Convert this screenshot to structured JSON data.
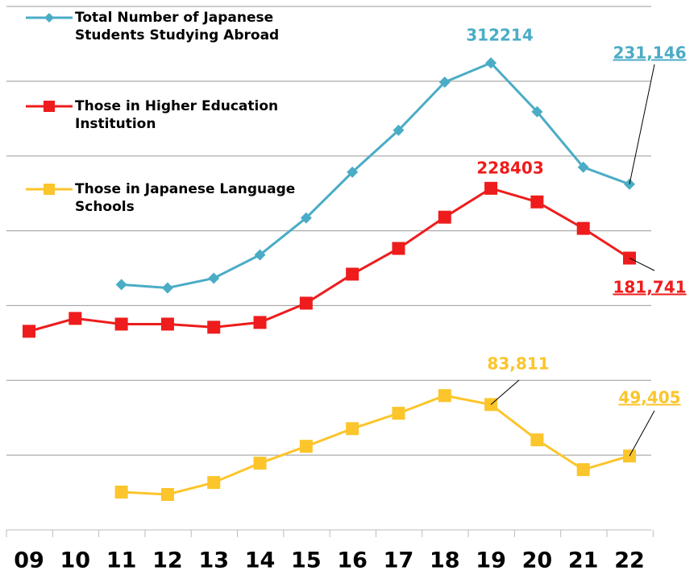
{
  "chart_data": {
    "type": "line",
    "categories": [
      "09",
      "10",
      "11",
      "12",
      "13",
      "14",
      "15",
      "16",
      "17",
      "18",
      "19",
      "20",
      "21",
      "22"
    ],
    "ylim": [
      0,
      350000
    ],
    "yticks": [
      0,
      50000,
      100000,
      150000,
      200000,
      250000,
      300000,
      350000
    ],
    "grid": true,
    "series": [
      {
        "name": "Total Number of Japanese Students Studying Abroad",
        "color": "#4bacc6",
        "marker": "diamond",
        "values": [
          null,
          null,
          164000,
          161800,
          168300,
          183900,
          208600,
          239200,
          267200,
          299400,
          312214,
          279600,
          242500,
          231146
        ],
        "value_labels": [
          null,
          null,
          null,
          null,
          null,
          null,
          null,
          null,
          null,
          null,
          "312214",
          null,
          null,
          "231,146"
        ]
      },
      {
        "name": "Those in Higher Education Institution",
        "color": "#ee1c1c",
        "marker": "square",
        "values": [
          132800,
          141400,
          137600,
          137600,
          135500,
          138700,
          151600,
          171000,
          188200,
          209100,
          228403,
          219300,
          201600,
          181741
        ],
        "value_labels": [
          null,
          null,
          null,
          null,
          null,
          null,
          null,
          null,
          null,
          null,
          "228403",
          null,
          null,
          "181,741"
        ]
      },
      {
        "name": "Those in Japanese Language Schools",
        "color": "#fbc52b",
        "marker": "square",
        "values": [
          null,
          null,
          25300,
          23700,
          31700,
          44600,
          55900,
          67700,
          78000,
          89800,
          83811,
          60200,
          40300,
          49405
        ],
        "value_labels": [
          null,
          null,
          null,
          null,
          null,
          null,
          null,
          null,
          null,
          null,
          "83,811",
          null,
          null,
          "49,405"
        ]
      }
    ]
  }
}
